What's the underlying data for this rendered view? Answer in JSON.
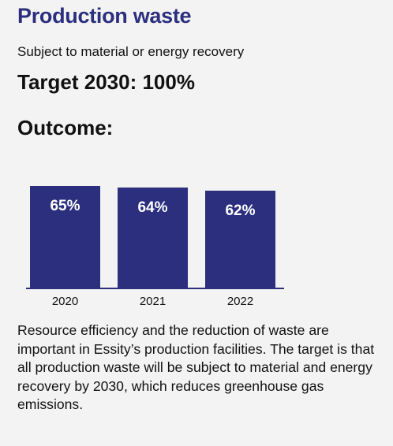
{
  "header": {
    "title": "Production waste",
    "subtitle": "Subject to material or energy recovery",
    "target": "Target 2030: 100%",
    "outcome": "Outcome:"
  },
  "chart_data": {
    "type": "bar",
    "categories": [
      "2020",
      "2021",
      "2022"
    ],
    "values": [
      65,
      64,
      62
    ],
    "data_labels": [
      "65%",
      "64%",
      "62%"
    ],
    "title": "",
    "xlabel": "",
    "ylabel": "",
    "ylim": [
      0,
      65
    ],
    "grid": false,
    "legend": "none",
    "colors": {
      "bar": "#2b2f7e",
      "bar_label": "#ffffff",
      "baseline": "#2b2f7e",
      "tick_label": "#111111"
    }
  },
  "description": "Resource efficiency and the reduction of waste are important in Essity’s production facilities. The target is that all production waste will be subject to material and energy recovery by 2030, which reduces greenhouse gas emissions."
}
